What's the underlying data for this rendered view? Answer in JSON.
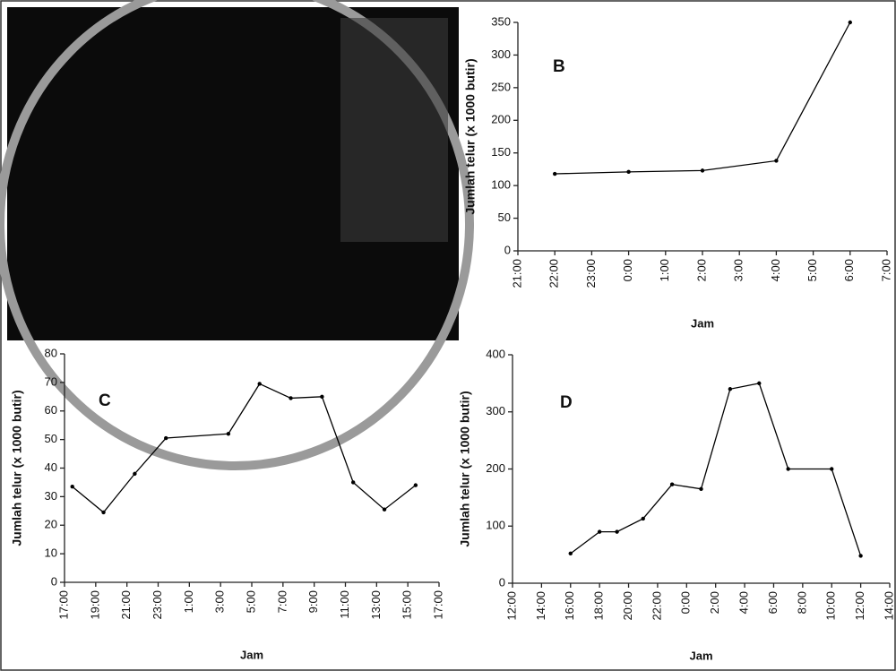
{
  "chart_data": [
    {
      "type": "line",
      "label": "B",
      "x_label": "Jam",
      "y_label": "Jumlah telur (x 1000 butir)",
      "color": "#000000",
      "x": [
        22,
        24,
        26,
        28,
        30
      ],
      "values": [
        118,
        121,
        123,
        138,
        350
      ],
      "xlim": [
        21,
        31
      ],
      "xticks": [
        {
          "value": 21,
          "label": "21:00"
        },
        {
          "value": 22,
          "label": "22:00"
        },
        {
          "value": 23,
          "label": "23:00"
        },
        {
          "value": 24,
          "label": "0:00"
        },
        {
          "value": 25,
          "label": "1:00"
        },
        {
          "value": 26,
          "label": "2:00"
        },
        {
          "value": 27,
          "label": "3:00"
        },
        {
          "value": 28,
          "label": "4:00"
        },
        {
          "value": 29,
          "label": "5:00"
        },
        {
          "value": 30,
          "label": "6:00"
        },
        {
          "value": 31,
          "label": "7:00"
        }
      ],
      "ylim": [
        0,
        350
      ],
      "yticks": [
        0,
        50,
        100,
        150,
        200,
        250,
        300,
        350
      ]
    },
    {
      "type": "line",
      "label": "C",
      "x_label": "Jam",
      "y_label": "Jumlah telur (x 1000 butir)",
      "color": "#000000",
      "x": [
        17.5,
        19.5,
        21.5,
        23.5,
        27.5,
        29.5,
        31.5,
        33.5,
        35.5,
        37.5,
        39.5
      ],
      "values": [
        33.5,
        24.5,
        38,
        50.5,
        52,
        69.5,
        64.5,
        65,
        35,
        25.5,
        34
      ],
      "xlim": [
        17,
        41
      ],
      "xticks": [
        {
          "value": 17,
          "label": "17:00"
        },
        {
          "value": 19,
          "label": "19:00"
        },
        {
          "value": 21,
          "label": "21:00"
        },
        {
          "value": 23,
          "label": "23:00"
        },
        {
          "value": 25,
          "label": "1:00"
        },
        {
          "value": 27,
          "label": "3:00"
        },
        {
          "value": 29,
          "label": "5:00"
        },
        {
          "value": 31,
          "label": "7:00"
        },
        {
          "value": 33,
          "label": "9:00"
        },
        {
          "value": 35,
          "label": "11:00"
        },
        {
          "value": 37,
          "label": "13:00"
        },
        {
          "value": 39,
          "label": "15:00"
        },
        {
          "value": 41,
          "label": "17:00"
        }
      ],
      "ylim": [
        0,
        80
      ],
      "yticks": [
        0,
        10,
        20,
        30,
        40,
        50,
        60,
        70,
        80
      ]
    },
    {
      "type": "line",
      "label": "D",
      "x_label": "Jam",
      "y_label": "Jumlah telur (x 1000 butir)",
      "color": "#000000",
      "x": [
        16,
        18,
        19.2,
        21,
        23,
        25,
        27,
        29,
        31,
        34,
        36
      ],
      "values": [
        52,
        90,
        90,
        113,
        173,
        165,
        340,
        350,
        200,
        200,
        48
      ],
      "xlim": [
        12,
        38
      ],
      "xticks": [
        {
          "value": 12,
          "label": "12:00"
        },
        {
          "value": 14,
          "label": "14:00"
        },
        {
          "value": 16,
          "label": "16:00"
        },
        {
          "value": 18,
          "label": "18:00"
        },
        {
          "value": 20,
          "label": "20:00"
        },
        {
          "value": 22,
          "label": "22:00"
        },
        {
          "value": 24,
          "label": "0:00"
        },
        {
          "value": 26,
          "label": "2:00"
        },
        {
          "value": 28,
          "label": "4:00"
        },
        {
          "value": 30,
          "label": "6:00"
        },
        {
          "value": 32,
          "label": "8:00"
        },
        {
          "value": 34,
          "label": "10:00"
        },
        {
          "value": 36,
          "label": "12:00"
        },
        {
          "value": 38,
          "label": "14:00"
        }
      ],
      "ylim": [
        0,
        400
      ],
      "yticks": [
        0,
        100,
        200,
        300,
        400
      ]
    }
  ]
}
